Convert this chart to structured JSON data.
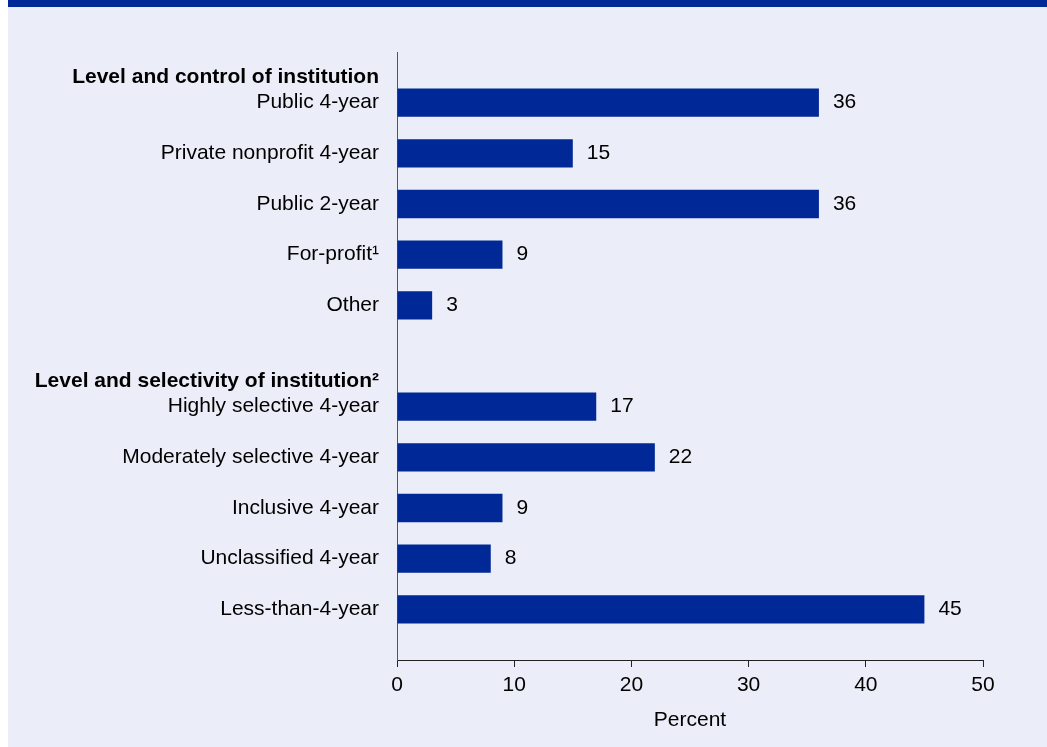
{
  "chart_data": {
    "type": "bar",
    "orientation": "horizontal",
    "categories": [
      "Level and control of institution",
      "Public 4-year",
      "Private nonprofit 4-year",
      "Public 2-year",
      "For-profit¹",
      "Other",
      "Level and selectivity of institution²",
      "Highly selective 4-year",
      "Moderately selective 4-year",
      "Inclusive 4-year",
      "Unclassified 4-year",
      "Less-than-4-year"
    ],
    "values": [
      null,
      36,
      15,
      36,
      9,
      3,
      null,
      17,
      22,
      9,
      8,
      45
    ],
    "color": "#002896",
    "xlabel": "Percent",
    "xlim": [
      0,
      50
    ],
    "xticks": [
      0,
      10,
      20,
      30,
      40,
      50
    ],
    "data_labels": true,
    "grid": false,
    "legend": false
  }
}
